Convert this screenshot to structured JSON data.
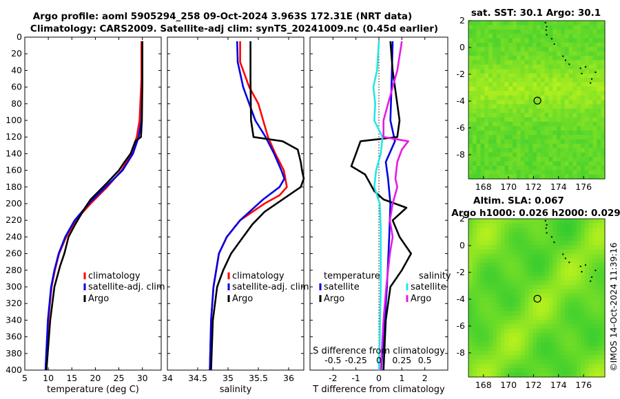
{
  "title": {
    "line1": "Argo profile: aoml 5905294_258 09-Oct-2024 3.963S 172.31E (NRT data)",
    "line2": "Climatology: CARS2009. Satellite-adj clim: synTS_20241009.nc (0.45d earlier)"
  },
  "timestamp": "©IMOS 14-Oct-2024 11:39:16",
  "colors": {
    "climatology": "#ff0000",
    "satellite": "#0000e6",
    "argo": "#000000",
    "sal_satellite": "#22e6e6",
    "sal_argo": "#e619e6",
    "map_green": "#3ed23e"
  },
  "chart_data": [
    {
      "type": "line",
      "title": "",
      "xlabel": "temperature (deg C)",
      "ylabel": "",
      "xlim": [
        5,
        34
      ],
      "ylim": [
        400,
        0
      ],
      "xticks": [
        "5",
        "10",
        "15",
        "20",
        "25",
        "30"
      ],
      "xtick_values": [
        5,
        10,
        15,
        20,
        25,
        30
      ],
      "yticks": [
        "0",
        "20",
        "40",
        "60",
        "80",
        "100",
        "120",
        "140",
        "160",
        "180",
        "200",
        "220",
        "240",
        "260",
        "280",
        "300",
        "320",
        "340",
        "360",
        "380",
        "400"
      ],
      "ytick_values": [
        0,
        20,
        40,
        60,
        80,
        100,
        120,
        140,
        160,
        180,
        200,
        220,
        240,
        260,
        280,
        300,
        320,
        340,
        360,
        380,
        400
      ],
      "legend": [
        "climatology",
        "satellite-adj. clim",
        "Argo"
      ],
      "series": [
        {
          "name": "climatology",
          "depth": [
            5,
            50,
            100,
            120,
            140,
            160,
            180,
            200,
            220,
            240,
            260,
            280,
            300,
            340,
            400
          ],
          "values": [
            29.8,
            29.8,
            29.4,
            28.8,
            27.6,
            25.6,
            22.5,
            19.0,
            15.8,
            13.8,
            12.3,
            11.4,
            10.7,
            10.0,
            9.5
          ]
        },
        {
          "name": "satellite-adj. clim",
          "depth": [
            5,
            50,
            100,
            120,
            140,
            160,
            180,
            200,
            220,
            240,
            260,
            280,
            300,
            340,
            400
          ],
          "values": [
            30.0,
            30.0,
            29.8,
            29.2,
            28.0,
            25.8,
            22.2,
            18.6,
            15.6,
            13.6,
            12.2,
            11.3,
            10.6,
            9.9,
            9.4
          ]
        },
        {
          "name": "Argo",
          "depth": [
            5,
            50,
            100,
            120,
            125,
            140,
            150,
            160,
            175,
            195,
            205,
            225,
            240,
            260,
            275,
            300,
            340,
            400
          ],
          "values": [
            30.0,
            30.0,
            29.9,
            29.7,
            28.5,
            27.5,
            26.2,
            25.0,
            22.5,
            19.0,
            17.8,
            15.7,
            14.3,
            13.4,
            12.5,
            11.3,
            10.4,
            9.6
          ]
        }
      ]
    },
    {
      "type": "line",
      "title": "",
      "xlabel": "salinity",
      "ylabel": "",
      "xlim": [
        34,
        36.25
      ],
      "ylim": [
        400,
        0
      ],
      "xticks": [
        "34",
        "34.5",
        "35",
        "35.5",
        "36"
      ],
      "xtick_values": [
        34,
        34.5,
        35,
        35.5,
        36
      ],
      "legend": [
        "climatology",
        "satellite-adj. clim",
        "Argo"
      ],
      "series": [
        {
          "name": "climatology",
          "depth": [
            5,
            30,
            60,
            80,
            100,
            120,
            140,
            160,
            180,
            190,
            200,
            220,
            240,
            260,
            300,
            340,
            400
          ],
          "values": [
            35.2,
            35.2,
            35.35,
            35.5,
            35.58,
            35.66,
            35.78,
            35.92,
            35.97,
            35.85,
            35.6,
            35.2,
            34.98,
            34.85,
            34.76,
            34.72,
            34.7
          ]
        },
        {
          "name": "satellite-adj. clim",
          "depth": [
            5,
            30,
            60,
            80,
            100,
            120,
            140,
            160,
            170,
            180,
            195,
            220,
            240,
            260,
            300,
            340,
            400
          ],
          "values": [
            35.15,
            35.16,
            35.25,
            35.35,
            35.45,
            35.62,
            35.76,
            35.88,
            35.93,
            35.85,
            35.58,
            35.2,
            34.98,
            34.85,
            34.76,
            34.72,
            34.7
          ]
        },
        {
          "name": "Argo",
          "depth": [
            5,
            50,
            100,
            120,
            125,
            135,
            150,
            160,
            170,
            180,
            195,
            210,
            225,
            240,
            260,
            280,
            300,
            340,
            400
          ],
          "values": [
            35.37,
            35.37,
            35.38,
            35.42,
            35.9,
            36.15,
            36.2,
            36.22,
            36.25,
            36.2,
            35.9,
            35.6,
            35.4,
            35.25,
            35.05,
            34.92,
            34.82,
            34.75,
            34.72
          ]
        }
      ]
    },
    {
      "type": "line",
      "title": "",
      "xlabel": "T difference from climatology",
      "xlabel_top": "S difference from climatology",
      "ylabel": "",
      "xlim": [
        -3,
        3
      ],
      "ylim": [
        400,
        0
      ],
      "xticks": [
        "-2",
        "-1",
        "0",
        "1",
        "2"
      ],
      "xtick_values": [
        -2,
        -1,
        0,
        1,
        2
      ],
      "xticks_salinity": [
        "-0.5",
        "-0.25",
        "0",
        "0.25",
        "0.5"
      ],
      "xtick_values_salinity": [
        -0.5,
        -0.25,
        0,
        0.25,
        0.5
      ],
      "legend_temperature": [
        "temperature",
        "satellite",
        "Argo"
      ],
      "legend_salinity": [
        "salinity",
        "satellite",
        "Argo"
      ],
      "series": [
        {
          "name": "temperature satellite",
          "depth": [
            5,
            60,
            100,
            125,
            150,
            170,
            200,
            240,
            300,
            360,
            400
          ],
          "values": [
            0.6,
            0.55,
            0.5,
            0.7,
            0.3,
            0.4,
            0.5,
            0.45,
            0.35,
            0.2,
            0.1
          ]
        },
        {
          "name": "temperature Argo",
          "depth": [
            5,
            40,
            60,
            100,
            120,
            125,
            140,
            155,
            165,
            175,
            185,
            195,
            205,
            220,
            240,
            260,
            280,
            300,
            340,
            400
          ],
          "values": [
            0.5,
            0.6,
            0.7,
            0.9,
            0.8,
            -0.8,
            -1.0,
            -1.2,
            -0.6,
            -0.4,
            -0.2,
            0.2,
            1.2,
            0.6,
            0.9,
            1.4,
            1.0,
            0.5,
            0.3,
            0.2
          ]
        },
        {
          "name": "salinity satellite",
          "depth": [
            5,
            40,
            60,
            80,
            100,
            120,
            140,
            160,
            180,
            200,
            230,
            270,
            300,
            360,
            400
          ],
          "values": [
            -0.0,
            -0.02,
            -0.06,
            -0.04,
            -0.05,
            0.04,
            0.02,
            -0.03,
            -0.05,
            0.01,
            0.02,
            0.02,
            0.02,
            0.01,
            0.0
          ]
        },
        {
          "name": "salinity Argo",
          "depth": [
            5,
            40,
            80,
            100,
            120,
            125,
            135,
            150,
            170,
            180,
            200,
            220,
            240,
            260,
            280,
            300,
            340,
            400
          ],
          "values": [
            0.25,
            0.2,
            0.1,
            0.05,
            0.05,
            0.32,
            0.25,
            0.2,
            0.18,
            0.2,
            0.15,
            0.12,
            0.15,
            0.12,
            0.1,
            0.08,
            0.05,
            0.02
          ]
        }
      ]
    },
    {
      "type": "heatmap",
      "title": "sat. SST: 30.1 Argo: 30.1",
      "xlim": [
        166.8,
        177.7
      ],
      "ylim": [
        -9.8,
        2
      ],
      "xticks": [
        "168",
        "170",
        "172",
        "174",
        "176"
      ],
      "xtick_values": [
        168,
        170,
        172,
        174,
        176
      ],
      "yticks": [
        "2",
        "0",
        "-2",
        "-4",
        "-6",
        "-8"
      ],
      "ytick_values": [
        2,
        0,
        -2,
        -4,
        -6,
        -8
      ],
      "marker": {
        "lon": 172.31,
        "lat": -3.963
      }
    },
    {
      "type": "heatmap",
      "title": "Altim. SLA: 0.067",
      "subtitle": "Argo h1000: 0.026 h2000: 0.029",
      "xlim": [
        166.8,
        177.7
      ],
      "ylim": [
        -9.8,
        2
      ],
      "xticks": [
        "168",
        "170",
        "172",
        "174",
        "176"
      ],
      "xtick_values": [
        168,
        170,
        172,
        174,
        176
      ],
      "yticks": [
        "2",
        "0",
        "-2",
        "-4",
        "-6",
        "-8"
      ],
      "ytick_values": [
        2,
        0,
        -2,
        -4,
        -6,
        -8
      ],
      "marker": {
        "lon": 172.31,
        "lat": -3.963
      }
    }
  ]
}
